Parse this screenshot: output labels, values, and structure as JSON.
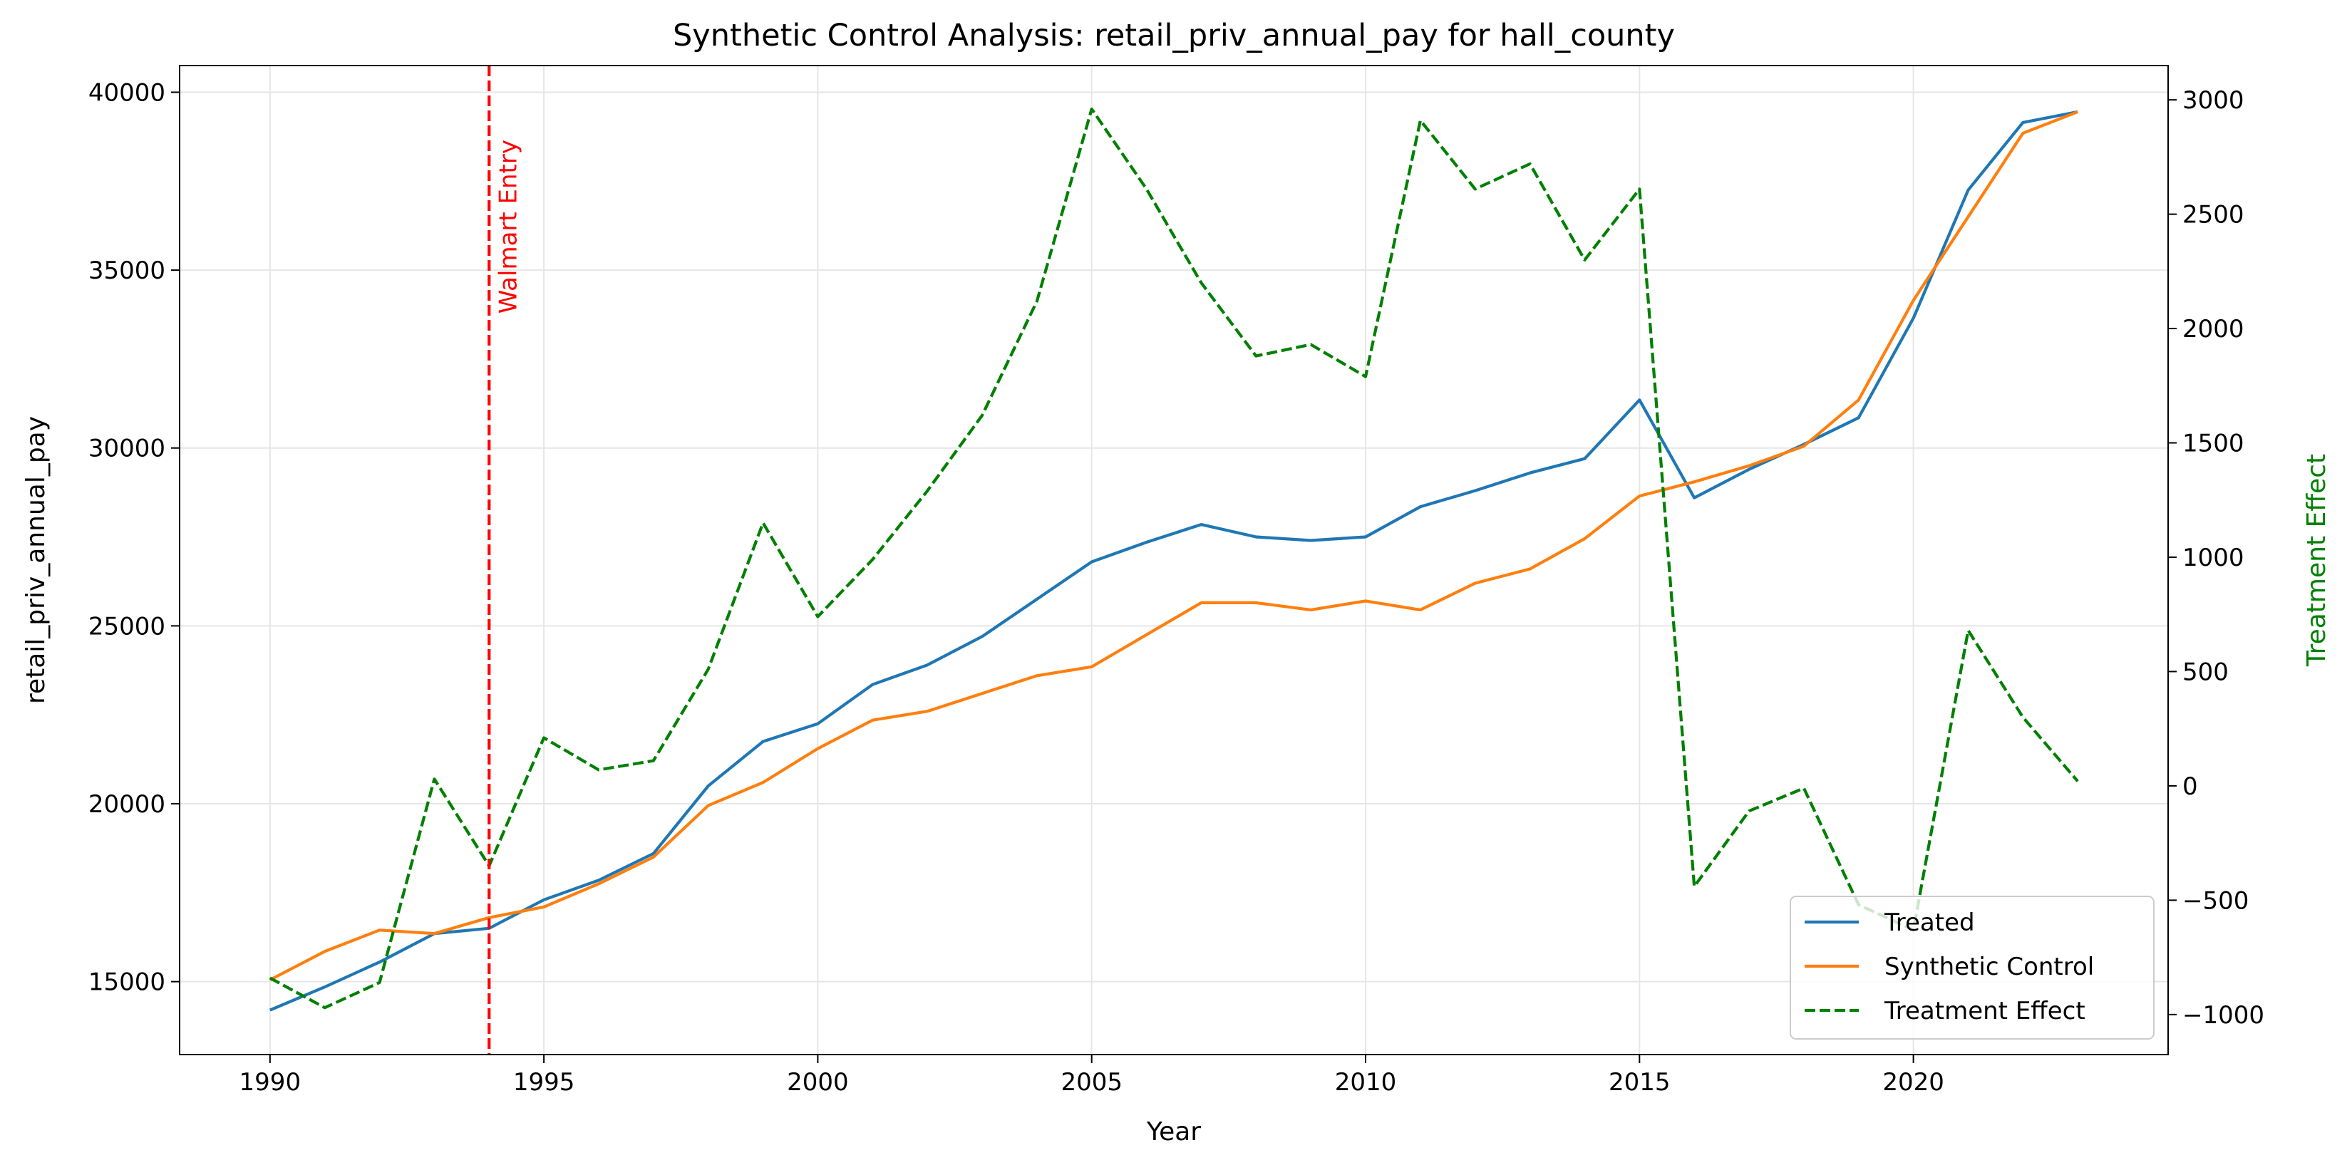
{
  "chart_data": {
    "type": "line",
    "title": "Synthetic Control Analysis: retail_priv_annual_pay for hall_county",
    "xlabel": "Year",
    "ylabel": "retail_priv_annual_pay",
    "y2label": "Treatment Effect",
    "xlim": [
      1988.35,
      2024.65
    ],
    "ylim": [
      12950,
      40750
    ],
    "y2lim": [
      -1175,
      3150
    ],
    "xticks": [
      "1990",
      "1995",
      "2000",
      "2005",
      "2010",
      "2015",
      "2020"
    ],
    "yticks": [
      "15000",
      "20000",
      "25000",
      "30000",
      "35000",
      "40000"
    ],
    "y2ticks": [
      "−1000",
      "−500",
      "0",
      "500",
      "1000",
      "1500",
      "2000",
      "2500",
      "3000"
    ],
    "grid": true,
    "legend_position": "bottom-right",
    "x": [
      1990,
      1991,
      1992,
      1993,
      1994,
      1995,
      1996,
      1997,
      1998,
      1999,
      2000,
      2001,
      2002,
      2003,
      2004,
      2005,
      2006,
      2007,
      2008,
      2009,
      2010,
      2011,
      2012,
      2013,
      2014,
      2015,
      2016,
      2017,
      2018,
      2019,
      2020,
      2021,
      2022,
      2023
    ],
    "series": [
      {
        "name": "Treated",
        "axis": "left",
        "color": "#1f77b4",
        "style": "solid",
        "values": [
          14200,
          14850,
          15550,
          16350,
          16500,
          17300,
          17850,
          18600,
          20500,
          21750,
          22250,
          23350,
          23900,
          24700,
          25750,
          26800,
          27350,
          27850,
          27500,
          27400,
          27500,
          28350,
          28800,
          29300,
          29700,
          31350,
          28600,
          29400,
          30100,
          30850,
          33650,
          37250,
          39150,
          39450
        ]
      },
      {
        "name": "Synthetic Control",
        "axis": "left",
        "color": "#ff7f0e",
        "style": "solid",
        "values": [
          15050,
          15850,
          16450,
          16350,
          16800,
          17100,
          17750,
          18500,
          19950,
          20600,
          21550,
          22350,
          22600,
          23100,
          23600,
          23850,
          24750,
          25650,
          25650,
          25450,
          25700,
          25450,
          26200,
          26600,
          27450,
          28650,
          29050,
          29500,
          30050,
          31350,
          34150,
          36500,
          38850,
          39450
        ]
      },
      {
        "name": "Treatment Effect",
        "axis": "right",
        "color": "#008000",
        "style": "dashed",
        "values": [
          -840,
          -970,
          -860,
          30,
          -350,
          210,
          70,
          110,
          510,
          1150,
          740,
          990,
          1290,
          1620,
          2120,
          2960,
          2610,
          2200,
          1880,
          1930,
          1790,
          2910,
          2610,
          2720,
          2300,
          2610,
          -440,
          -110,
          -10,
          -520,
          -630,
          680,
          300,
          20
        ]
      }
    ],
    "annotations": [
      {
        "type": "vline",
        "x": 1994,
        "color": "#ff0000",
        "style": "dashed",
        "label": "Walmart Entry"
      }
    ]
  }
}
